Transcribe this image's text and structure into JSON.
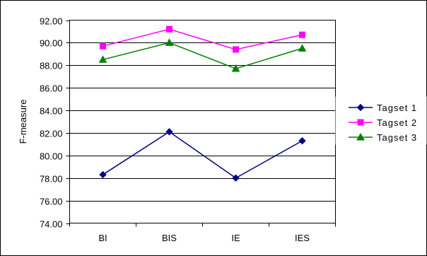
{
  "chart_data": {
    "type": "line",
    "title": "",
    "xlabel": "",
    "ylabel": "F-measure",
    "ylim": [
      74,
      92
    ],
    "ytick_step": 2,
    "ytick_labels": [
      "74.00",
      "76.00",
      "78.00",
      "80.00",
      "82.00",
      "84.00",
      "86.00",
      "88.00",
      "90.00",
      "92.00"
    ],
    "categories": [
      "BI",
      "BIS",
      "IE",
      "IES"
    ],
    "grid": true,
    "legend_position": "right",
    "series": [
      {
        "name": "Tagset 1",
        "values": [
          78.3,
          82.1,
          78.0,
          81.3
        ],
        "color": "#000080",
        "marker": "diamond"
      },
      {
        "name": "Tagset 2",
        "values": [
          89.7,
          91.2,
          89.4,
          90.7
        ],
        "color": "#ff00ff",
        "marker": "square"
      },
      {
        "name": "Tagset 3",
        "values": [
          88.5,
          90.0,
          87.7,
          89.5
        ],
        "color": "#008000",
        "marker": "triangle"
      }
    ]
  }
}
